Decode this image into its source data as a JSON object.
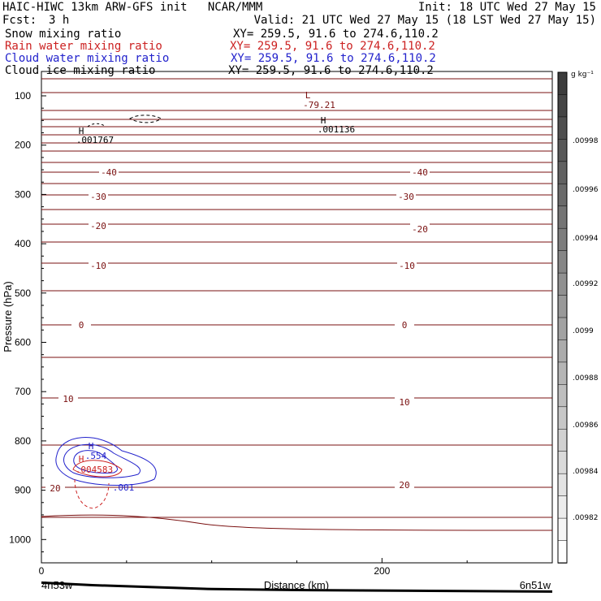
{
  "header": {
    "title_left": "HAIC-HIWC 13km ARW-GFS init   NCAR/MMM",
    "init": "Init: 18 UTC Wed 27 May 15",
    "fcst_label": "Fcst:",
    "fcst_value": "3 h",
    "valid": "Valid: 21 UTC Wed 27 May 15 (18 LST Wed 27 May 15)"
  },
  "fields": [
    {
      "name": "Snow mixing ratio",
      "xy": "XY= 259.5, 91.6 to 274.6,110.2",
      "color": "#000000"
    },
    {
      "name": "Rain water mixing ratio",
      "xy": "XY= 259.5, 91.6 to 274.6,110.2",
      "color": "#cc2222"
    },
    {
      "name": "Cloud water mixing ratio",
      "xy": "XY= 259.5, 91.6 to 274.6,110.2",
      "color": "#2222cc"
    },
    {
      "name": "Cloud ice mixing ratio",
      "xy": "XY= 259.5, 91.6 to 274.6,110.2",
      "color": "#000000"
    }
  ],
  "colorbar": {
    "unit": "g kg⁻¹",
    "labels": [
      ".00998",
      ".00996",
      ".00994",
      ".00992",
      ".0099",
      ".00988",
      ".00986",
      ".00984",
      ".00982"
    ]
  },
  "chart_data": {
    "type": "contour",
    "ylabel": "Pressure (hPa)",
    "xlabel": "Distance (km)",
    "x_start_label": "4n53w",
    "x_end_label": "6n51w",
    "xlim": [
      0,
      300
    ],
    "ylim": [
      1050,
      65
    ],
    "yticks": [
      100,
      200,
      300,
      400,
      500,
      600,
      700,
      800,
      900,
      1000
    ],
    "xticks": [
      0,
      200
    ],
    "temperature_contour_labels": [
      {
        "text": "-40",
        "x": 40,
        "p": 220
      },
      {
        "text": "-40",
        "x": 230,
        "p": 220
      },
      {
        "text": "-30",
        "x": 36,
        "p": 304
      },
      {
        "text": "-30",
        "x": 224,
        "p": 304
      },
      {
        "text": "-20",
        "x": 34,
        "p": 366
      },
      {
        "text": "-20",
        "x": 228,
        "p": 381
      },
      {
        "text": "-10",
        "x": 36,
        "p": 473
      },
      {
        "text": "-10",
        "x": 222,
        "p": 473
      },
      {
        "text": "0",
        "x": 24,
        "p": 567
      },
      {
        "text": "0",
        "x": 222,
        "p": 567
      },
      {
        "text": "10",
        "x": 16,
        "p": 720
      },
      {
        "text": "10",
        "x": 218,
        "p": 727
      },
      {
        "text": "20",
        "x": 8,
        "p": 903
      },
      {
        "text": "20",
        "x": 220,
        "p": 893
      }
    ],
    "extrema": [
      {
        "type": "L",
        "value": "-79.21",
        "x": 158,
        "p": 120
      },
      {
        "type": "H",
        "value": ".001767",
        "x": 22,
        "p": 175
      },
      {
        "type": "H",
        "value": ".001136",
        "x": 168,
        "p": 165
      },
      {
        "type": "H",
        "value": ".554",
        "x": 30,
        "p": 833
      },
      {
        "type": "H",
        "value": ".004583",
        "x": 22,
        "p": 880
      },
      {
        "type": "label",
        "value": ".001",
        "x": 46,
        "p": 902
      }
    ],
    "surface_pressure": {
      "x": [
        0,
        30,
        100,
        150,
        300
      ],
      "p": [
        992,
        997,
        1005,
        1007,
        1010
      ]
    }
  }
}
